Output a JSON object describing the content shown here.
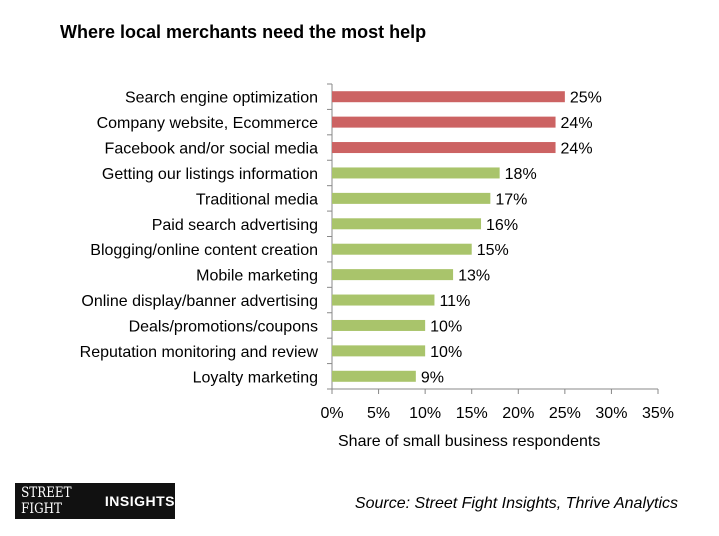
{
  "title": "Where local merchants need the most help",
  "xlabel": "Share of small business respondents",
  "source": "Source: Street Fight Insights, Thrive Analytics",
  "logo": {
    "part1": "STREET FIGHT",
    "part2": "INSIGHTS"
  },
  "colors": {
    "highlight": "#cc6363",
    "normal": "#a9c46b",
    "axis": "#888888"
  },
  "chart_data": {
    "type": "bar",
    "orientation": "horizontal",
    "title": "Where local merchants need the most help",
    "xlabel": "Share of small business respondents",
    "ylabel": "",
    "xlim": [
      0,
      35
    ],
    "grid": false,
    "ticks": [
      "0%",
      "5%",
      "10%",
      "15%",
      "20%",
      "25%",
      "30%",
      "35%"
    ],
    "categories": [
      "Search engine optimization",
      "Company website, Ecommerce",
      "Facebook and/or social media",
      "Getting our listings information",
      "Traditional media",
      "Paid search advertising",
      "Blogging/online content creation",
      "Mobile marketing",
      "Online display/banner advertising",
      "Deals/promotions/coupons",
      "Reputation monitoring and review",
      "Loyalty marketing"
    ],
    "values": [
      25,
      24,
      24,
      18,
      17,
      16,
      15,
      13,
      11,
      10,
      10,
      9
    ],
    "labels": [
      "25%",
      "24%",
      "24%",
      "18%",
      "17%",
      "16%",
      "15%",
      "13%",
      "11%",
      "10%",
      "10%",
      "9%"
    ],
    "highlighted": [
      true,
      true,
      true,
      false,
      false,
      false,
      false,
      false,
      false,
      false,
      false,
      false
    ]
  }
}
